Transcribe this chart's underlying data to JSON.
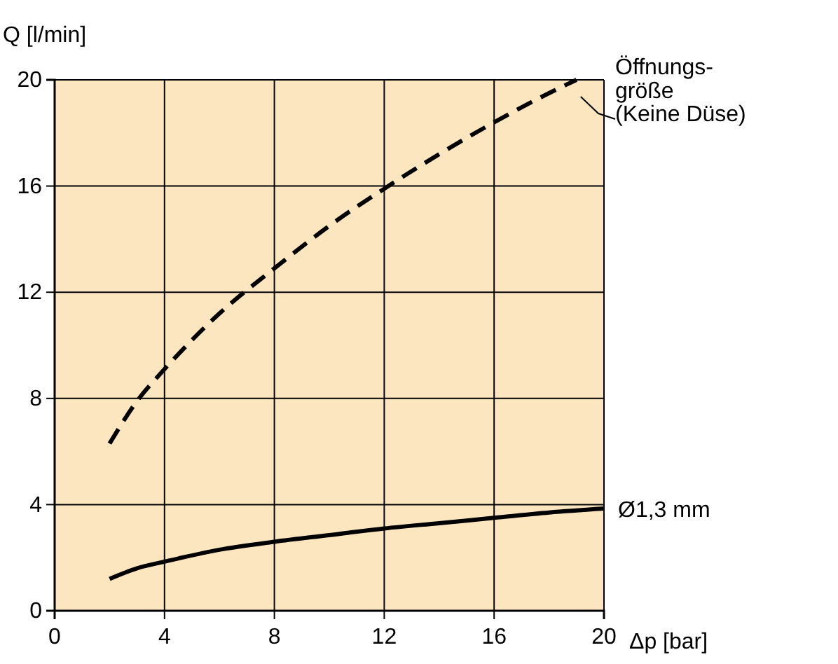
{
  "chart_data": {
    "type": "line",
    "xlabel": "Δp [bar]",
    "ylabel": "Q [l/min]",
    "xlim": [
      0,
      20
    ],
    "ylim": [
      0,
      20
    ],
    "xticks": [
      0,
      4,
      8,
      12,
      16,
      20
    ],
    "yticks": [
      0,
      4,
      8,
      12,
      16,
      20
    ],
    "grid": true,
    "series": [
      {
        "name": "Öffnungs-\ngröße\n(Keine Düse)",
        "color": "#000000",
        "line_style": "dashed",
        "x": [
          2,
          3,
          4,
          6,
          8,
          10,
          12,
          14,
          16,
          18,
          19
        ],
        "values": [
          6.3,
          7.9,
          9.1,
          11.2,
          12.9,
          14.5,
          15.9,
          17.2,
          18.4,
          19.5,
          20
        ]
      },
      {
        "name": "Ø1,3 mm",
        "color": "#000000",
        "line_style": "solid",
        "x": [
          2,
          3,
          4,
          6,
          8,
          10,
          12,
          14,
          16,
          18,
          20
        ],
        "values": [
          1.2,
          1.6,
          1.85,
          2.3,
          2.6,
          2.85,
          3.1,
          3.3,
          3.5,
          3.7,
          3.85
        ]
      }
    ]
  }
}
